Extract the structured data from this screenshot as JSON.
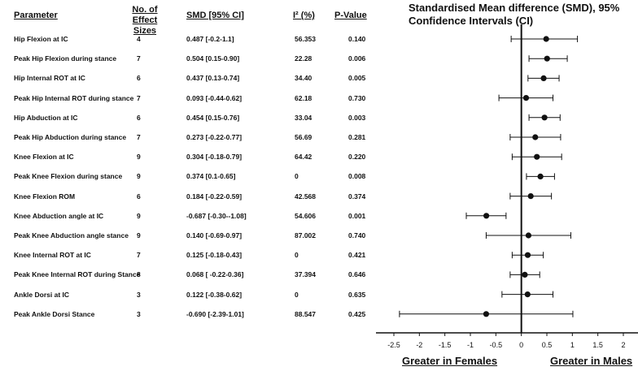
{
  "headers": {
    "parameter": "Parameter",
    "n_effect": "No. of Effect Sizes",
    "smd": "SMD [95% CI]",
    "i2": "I² (%)",
    "pvalue": "P-Value"
  },
  "chart_data": {
    "type": "forest",
    "title": "Standardised Mean difference (SMD), 95% Confidence Intervals (CI)",
    "xlim": [
      -2.5,
      2
    ],
    "xticks": [
      -2.5,
      -2,
      -1.5,
      -1,
      -0.5,
      0,
      0.5,
      1,
      1.5,
      2
    ],
    "xtick_labels": [
      "-2.5",
      "-2",
      "-1.5",
      "-1",
      "-0.5",
      "0",
      "0.5",
      "1",
      "1.5",
      "2"
    ],
    "reference_line": 0,
    "footer_left": "Greater in Females",
    "footer_right": "Greater in Males",
    "rows": [
      {
        "parameter": "Hip Flexion at IC",
        "n": "4",
        "smd_text": "0.487 [-0.2-1.1]",
        "i2": "56.353",
        "p": "0.140",
        "smd": 0.487,
        "lo": -0.2,
        "hi": 1.1
      },
      {
        "parameter": "Peak Hip Flexion during stance",
        "n": "7",
        "smd_text": "0.504 [0.15-0.90]",
        "i2": "22.28",
        "p": "0.006",
        "smd": 0.504,
        "lo": 0.15,
        "hi": 0.9
      },
      {
        "parameter": "Hip Internal ROT at IC",
        "n": "6",
        "smd_text": "0.437 [0.13-0.74]",
        "i2": "34.40",
        "p": "0.005",
        "smd": 0.437,
        "lo": 0.13,
        "hi": 0.74
      },
      {
        "parameter": "Peak Hip Internal ROT during stance",
        "n": "7",
        "smd_text": "0.093 [-0.44-0.62]",
        "i2": "62.18",
        "p": "0.730",
        "smd": 0.093,
        "lo": -0.44,
        "hi": 0.62
      },
      {
        "parameter": "Hip Abduction at IC",
        "n": "6",
        "smd_text": "0.454 [0.15-0.76]",
        "i2": "33.04",
        "p": "0.003",
        "smd": 0.454,
        "lo": 0.15,
        "hi": 0.76
      },
      {
        "parameter": "Peak Hip Abduction during stance",
        "n": "7",
        "smd_text": "0.273 [-0.22-0.77]",
        "i2": "56.69",
        "p": "0.281",
        "smd": 0.273,
        "lo": -0.22,
        "hi": 0.77
      },
      {
        "parameter": "Knee Flexion at IC",
        "n": "9",
        "smd_text": "0.304 [-0.18-0.79]",
        "i2": "64.42",
        "p": "0.220",
        "smd": 0.304,
        "lo": -0.18,
        "hi": 0.79
      },
      {
        "parameter": "Peak Knee Flexion during stance",
        "n": "9",
        "smd_text": "0.374 [0.1-0.65]",
        "i2": "0",
        "p": "0.008",
        "smd": 0.374,
        "lo": 0.1,
        "hi": 0.65
      },
      {
        "parameter": "Knee Flexion ROM",
        "n": "6",
        "smd_text": "0.184 [-0.22-0.59]",
        "i2": "42.568",
        "p": "0.374",
        "smd": 0.184,
        "lo": -0.22,
        "hi": 0.59
      },
      {
        "parameter": "Knee Abduction angle at IC",
        "n": "9",
        "smd_text": "-0.687 [-0.30--1.08]",
        "i2": "54.606",
        "p": "0.001",
        "smd": -0.687,
        "lo": -1.08,
        "hi": -0.3
      },
      {
        "parameter": "Peak Knee Abduction angle stance",
        "n": "9",
        "smd_text": "0.140 [-0.69-0.97]",
        "i2": "87.002",
        "p": "0.740",
        "smd": 0.14,
        "lo": -0.69,
        "hi": 0.97
      },
      {
        "parameter": "Knee Internal ROT at IC",
        "n": "7",
        "smd_text": "0.125 [-0.18-0.43]",
        "i2": "0",
        "p": "0.421",
        "smd": 0.125,
        "lo": -0.18,
        "hi": 0.43
      },
      {
        "parameter": "Peak Knee Internal ROT during Stance",
        "n": "8",
        "smd_text": "0.068 [ -0.22-0.36]",
        "i2": "37.394",
        "p": "0.646",
        "smd": 0.068,
        "lo": -0.22,
        "hi": 0.36
      },
      {
        "parameter": "Ankle Dorsi at IC",
        "n": "3",
        "smd_text": "0.122 [-0.38-0.62]",
        "i2": "0",
        "p": "0.635",
        "smd": 0.122,
        "lo": -0.38,
        "hi": 0.62
      },
      {
        "parameter": "Peak Ankle Dorsi Stance",
        "n": "3",
        "smd_text": "-0.690 [-2.39-1.01]",
        "i2": "88.547",
        "p": "0.425",
        "smd": -0.69,
        "lo": -2.39,
        "hi": 1.01
      }
    ]
  }
}
